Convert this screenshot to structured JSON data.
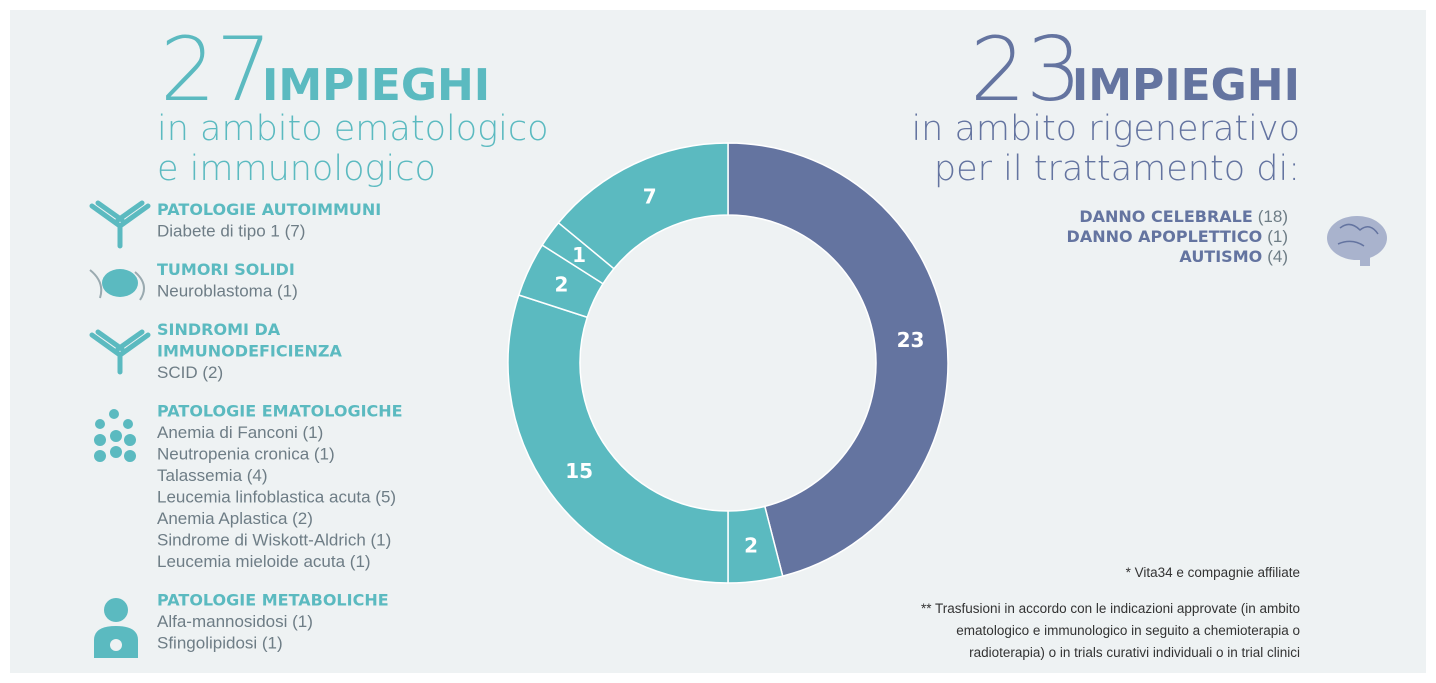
{
  "chart_data": {
    "type": "donut",
    "values": [
      23,
      2,
      15,
      2,
      1,
      7
    ],
    "colors": [
      "#6474a0",
      "#5bbac0",
      "#5bbac0",
      "#5bbac0",
      "#5bbac0",
      "#5bbac0"
    ]
  },
  "left": {
    "count": 27,
    "heading": "IMPIEGHI",
    "subtitle": [
      "in ambito ematologico",
      "e immunologico"
    ],
    "groups": [
      {
        "title": [
          "PATOLOGIE AUTOIMMUNI"
        ],
        "items": [
          "Diabete di tipo 1 (7)"
        ]
      },
      {
        "title": [
          "TUMORI SOLIDI"
        ],
        "items": [
          "Neuroblastoma (1)"
        ]
      },
      {
        "title": [
          "SINDROMI DA",
          "IMMUNODEFICIENZA"
        ],
        "items": [
          "SCID (2)"
        ]
      },
      {
        "title": [
          "PATOLOGIE EMATOLOGICHE"
        ],
        "items": [
          "Anemia di Fanconi (1)",
          "Neutropenia cronica (1)",
          "Talassemia (4)",
          "Leucemia linfoblastica acuta (5)",
          "Anemia Aplastica (2)",
          "Sindrome di Wiskott-Aldrich (1)",
          "Leucemia mieloide acuta (1)"
        ]
      },
      {
        "title": [
          "PATOLOGIE METABOLICHE"
        ],
        "items": [
          "Alfa-mannosidosi (1)",
          "Sfingolipidosi (1)"
        ]
      }
    ]
  },
  "right": {
    "count": 23,
    "heading": "IMPIEGHI",
    "subtitle": [
      "in ambito rigenerativo",
      "per il trattamento di:"
    ],
    "items": [
      {
        "label": "DANNO CELEBRALE",
        "count": "(18)"
      },
      {
        "label": "DANNO APOPLETTICO",
        "count": "(1)"
      },
      {
        "label": "AUTISMO",
        "count": "(4)"
      }
    ]
  },
  "notes": [
    "*  Vita34 e compagnie affiliate",
    "** Trasfusioni in accordo con le indicazioni approvate (in ambito",
    "ematologico e immunologico in seguito a chemioterapia o",
    "radioterapia) o in trials curativi individuali o in trial clinici"
  ]
}
